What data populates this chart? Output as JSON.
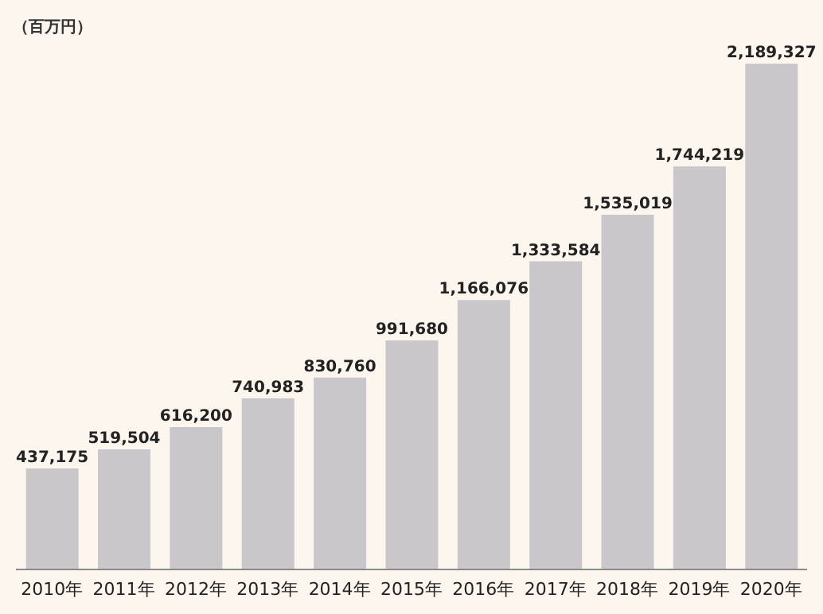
{
  "chart_data": {
    "type": "bar",
    "ylabel": "（百万円）",
    "categories": [
      "2010年",
      "2011年",
      "2012年",
      "2013年",
      "2014年",
      "2015年",
      "2016年",
      "2017年",
      "2018年",
      "2019年",
      "2020年"
    ],
    "values": [
      437175,
      519504,
      616200,
      740983,
      830760,
      991680,
      1166076,
      1333584,
      1535019,
      1744219,
      2189327
    ],
    "value_labels": [
      "437,175",
      "519,504",
      "616,200",
      "740,983",
      "830,760",
      "991,680",
      "1,166,076",
      "1,333,584",
      "1,535,019",
      "1,744,219",
      "2,189,327"
    ],
    "color": "#c9c7c9",
    "grid": false,
    "legend": false
  }
}
